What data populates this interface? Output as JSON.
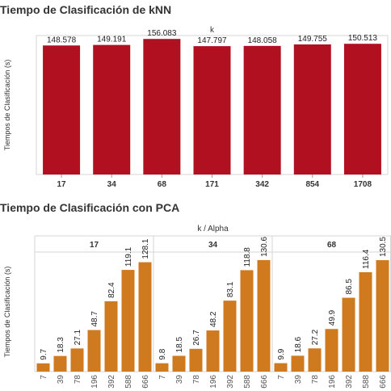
{
  "chart_data": [
    {
      "type": "bar",
      "title": "Tiempo de Clasificación de kNN",
      "column_header": "k",
      "ylabel": "Tiempos de Clasificación (s)",
      "categories": [
        "17",
        "34",
        "68",
        "171",
        "342",
        "854",
        "1708"
      ],
      "values": [
        148.578,
        149.191,
        156.083,
        147.797,
        148.058,
        149.755,
        150.513
      ],
      "value_labels": [
        "148.578",
        "149.191",
        "156.083",
        "147.797",
        "148.058",
        "149.755",
        "150.513"
      ],
      "ylim": [
        0,
        160
      ],
      "grid": false,
      "bar_color": "#B01020"
    },
    {
      "type": "bar",
      "title": "Tiempo de Clasificación con PCA",
      "column_header": "k  /  Alpha",
      "ylabel": "Tiempos de Clasificación (s)",
      "panels": [
        {
          "k": "17",
          "categories": [
            "7",
            "39",
            "78",
            "196",
            "392",
            "588",
            "666"
          ],
          "values": [
            9.7,
            18.3,
            27.1,
            48.7,
            82.4,
            119.1,
            128.1
          ],
          "value_labels": [
            "9.7",
            "18.3",
            "27.1",
            "48.7",
            "82.4",
            "119.1",
            "128.1"
          ]
        },
        {
          "k": "34",
          "categories": [
            "7",
            "39",
            "78",
            "196",
            "392",
            "588",
            "666"
          ],
          "values": [
            9.8,
            18.5,
            26.7,
            48.2,
            83.1,
            118.8,
            130.6
          ],
          "value_labels": [
            "9.8",
            "18.5",
            "26.7",
            "48.2",
            "83.1",
            "118.8",
            "130.6"
          ]
        },
        {
          "k": "68",
          "categories": [
            "7",
            "39",
            "78",
            "196",
            "392",
            "588",
            "666"
          ],
          "values": [
            9.9,
            18.6,
            27.2,
            49.9,
            86.5,
            116.4,
            130.5
          ],
          "value_labels": [
            "9.9",
            "18.6",
            "27.2",
            "49.9",
            "86.5",
            "116.4",
            "130.5"
          ]
        }
      ],
      "ylim": [
        0,
        140
      ],
      "grid": false,
      "bar_color": "#D07A20"
    }
  ]
}
